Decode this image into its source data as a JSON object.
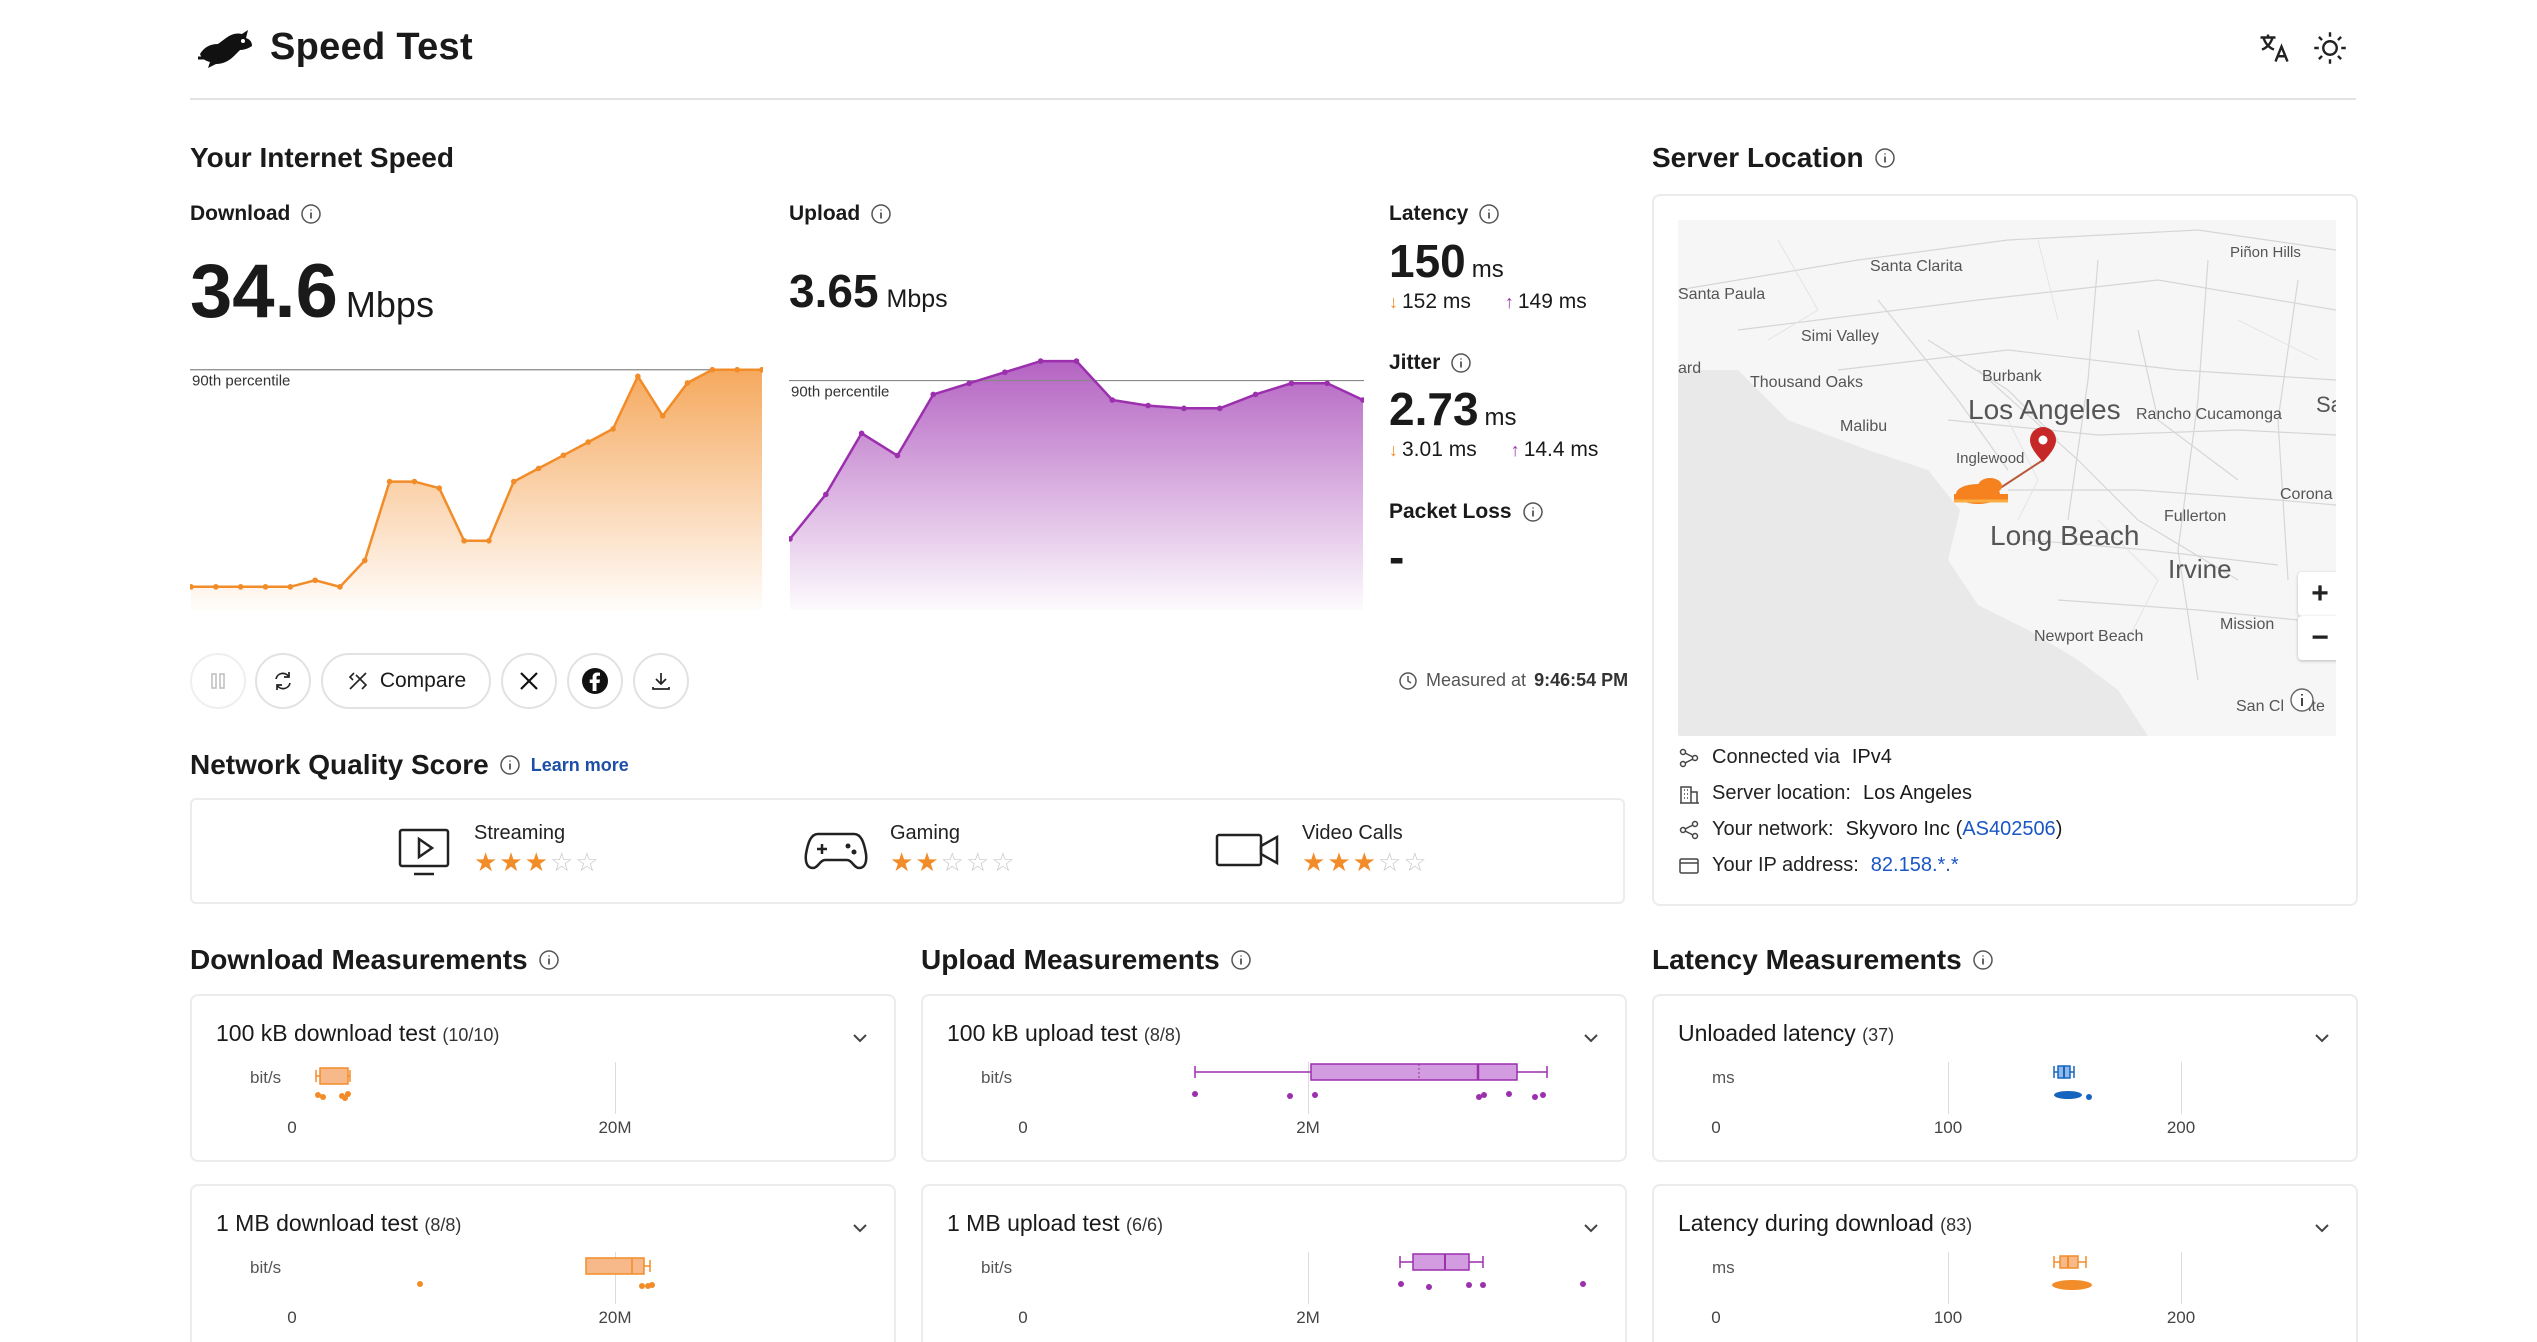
{
  "header": {
    "title": "Speed Test",
    "translate_icon": "translate-icon",
    "theme_icon": "sun-icon"
  },
  "speed": {
    "section_title": "Your Internet Speed",
    "download": {
      "label": "Download",
      "value": "34.6",
      "unit": "Mbps",
      "percentile_label": "90th percentile",
      "color": "#f28c28"
    },
    "upload": {
      "label": "Upload",
      "value": "3.65",
      "unit": "Mbps",
      "percentile_label": "90th percentile",
      "color": "#9b2fae"
    },
    "latency": {
      "label": "Latency",
      "value": "150",
      "unit": "ms",
      "down": "152 ms",
      "up": "149 ms"
    },
    "jitter": {
      "label": "Jitter",
      "value": "2.73",
      "unit": "ms",
      "down": "3.01 ms",
      "up": "14.4 ms"
    },
    "packet_loss": {
      "label": "Packet Loss",
      "value": "-"
    },
    "actions": {
      "compare": "Compare"
    },
    "measured_label": "Measured at",
    "measured_time": "9:46:54 PM"
  },
  "network_quality": {
    "title": "Network Quality Score",
    "learn_more": "Learn more",
    "items": [
      {
        "name": "Streaming",
        "stars": 3,
        "max": 5
      },
      {
        "name": "Gaming",
        "stars": 2,
        "max": 5
      },
      {
        "name": "Video Calls",
        "stars": 3,
        "max": 5
      }
    ]
  },
  "server": {
    "title": "Server Location",
    "map_labels": {
      "pinon": "Piñon Hills",
      "santa_clarita": "Santa Clarita",
      "santa_paula": "Santa Paula",
      "simi": "Simi Valley",
      "ard": "ard",
      "thousand_oaks": "Thousand Oaks",
      "burbank": "Burbank",
      "sa": "Sa",
      "malibu": "Malibu",
      "la": "Los Angeles",
      "rancho": "Rancho Cucamonga",
      "inglewood": "Inglewood",
      "corona": "Corona",
      "fullerton": "Fullerton",
      "long_beach": "Long Beach",
      "irvine": "Irvine",
      "mission": "Mission",
      "newport": "Newport Beach",
      "san_cl": "San Cl",
      "ite": "ite"
    },
    "zoom_in": "+",
    "zoom_out": "−",
    "connected_label": "Connected via",
    "connected_value": "IPv4",
    "location_label": "Server location:",
    "location_value": "Los Angeles",
    "network_label": "Your network:",
    "network_value": "Skyvoro Inc (",
    "network_asn": "AS402506",
    "network_close": ")",
    "ip_label": "Your IP address:",
    "ip_value": "82.158.*.*"
  },
  "measurements": {
    "download_title": "Download Measurements",
    "upload_title": "Upload Measurements",
    "latency_title": "Latency Measurements",
    "cards": {
      "d100k": {
        "title": "100 kB download test",
        "count": "(10/10)",
        "unit": "bit/s",
        "ticks": [
          "0",
          "20M"
        ]
      },
      "d1m": {
        "title": "1 MB download test",
        "count": "(8/8)",
        "unit": "bit/s",
        "ticks": [
          "0",
          "20M"
        ]
      },
      "u100k": {
        "title": "100 kB upload test",
        "count": "(8/8)",
        "unit": "bit/s",
        "ticks": [
          "0",
          "2M"
        ]
      },
      "u1m": {
        "title": "1 MB upload test",
        "count": "(6/6)",
        "unit": "bit/s",
        "ticks": [
          "0",
          "2M"
        ]
      },
      "lu": {
        "title": "Unloaded latency",
        "count": "(37)",
        "unit": "ms",
        "ticks": [
          "0",
          "100",
          "200"
        ]
      },
      "ld": {
        "title": "Latency during download",
        "count": "(83)",
        "unit": "ms",
        "ticks": [
          "0",
          "100",
          "200"
        ]
      }
    }
  },
  "chart_data": [
    {
      "type": "area",
      "series": [
        {
          "name": "Download",
          "x": [
            0,
            1,
            2,
            3,
            4,
            5,
            6,
            7,
            8,
            9,
            10,
            11,
            12,
            13,
            14,
            15,
            16,
            17,
            18,
            19,
            20,
            21,
            22,
            23
          ],
          "values": [
            2,
            2,
            2,
            2,
            2,
            3,
            2,
            6,
            18,
            18,
            17,
            9,
            9,
            18,
            20,
            22,
            24,
            26,
            34,
            28,
            33,
            35,
            35,
            35
          ]
        }
      ],
      "percentile_90": 35,
      "ylim": [
        0,
        38
      ]
    },
    {
      "type": "area",
      "series": [
        {
          "name": "Upload",
          "x": [
            0,
            1,
            2,
            3,
            4,
            5,
            6,
            7,
            8,
            9,
            10,
            11,
            12,
            13,
            14,
            15,
            16
          ],
          "values": [
            1.1,
            1.9,
            3.0,
            2.6,
            3.7,
            3.9,
            4.1,
            4.3,
            4.3,
            3.6,
            3.5,
            3.45,
            3.45,
            3.7,
            3.9,
            3.9,
            3.6
          ],
          "color": "#9b2fae"
        }
      ],
      "percentile_90": 3.95,
      "ylim": [
        0,
        4.5
      ]
    }
  ]
}
